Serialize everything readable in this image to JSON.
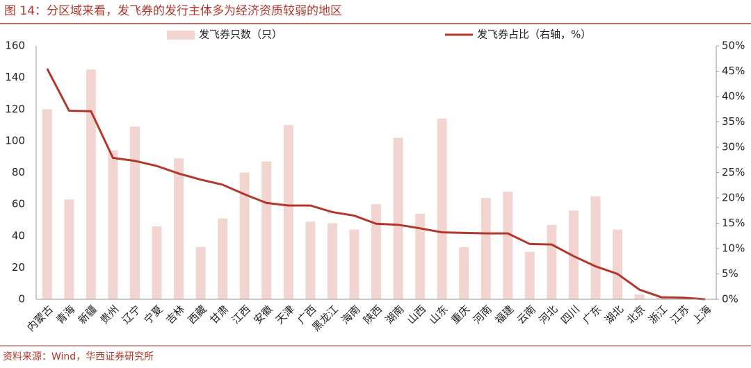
{
  "chart_data": {
    "type": "combo",
    "title": "图 14：分区域来看，发飞券的发行主体多为经济资质较弱的地区",
    "source": "资料来源：Wind，华西证券研究所",
    "categories": [
      "内蒙古",
      "青海",
      "新疆",
      "贵州",
      "辽宁",
      "宁夏",
      "吉林",
      "西藏",
      "甘肃",
      "江西",
      "安徽",
      "天津",
      "广西",
      "黑龙江",
      "海南",
      "陕西",
      "湖南",
      "山西",
      "山东",
      "重庆",
      "河南",
      "福建",
      "云南",
      "河北",
      "四川",
      "广东",
      "湖北",
      "北京",
      "浙江",
      "江苏",
      "上海"
    ],
    "series": [
      {
        "name": "发飞券只数（只）",
        "type": "bar",
        "color": "#f2d5d0",
        "values": [
          120,
          63,
          145,
          94,
          109,
          46,
          89,
          33,
          51,
          80,
          87,
          110,
          49,
          48,
          44,
          60,
          102,
          54,
          114,
          33,
          64,
          68,
          30,
          47,
          56,
          65,
          44,
          3,
          1,
          1,
          0
        ]
      },
      {
        "name": "发飞券占比（右轴，%）",
        "type": "line",
        "axis": "y2",
        "color": "#b3362b",
        "values": [
          45.5,
          37.2,
          37.1,
          27.9,
          27.3,
          26.3,
          24.8,
          23.6,
          22.6,
          20.7,
          19.0,
          18.5,
          18.5,
          17.2,
          16.5,
          14.9,
          14.7,
          14.0,
          13.2,
          13.1,
          13.0,
          13.0,
          10.9,
          10.8,
          8.5,
          6.5,
          5.0,
          1.9,
          0.4,
          0.3,
          0.0
        ]
      }
    ],
    "ylim": [
      0,
      160
    ],
    "yticks": [
      0,
      20,
      40,
      60,
      80,
      100,
      120,
      140,
      160
    ],
    "y2lim": [
      0,
      50
    ],
    "y2ticks": [
      {
        "value": 0,
        "label": "0%"
      },
      {
        "value": 5,
        "label": "5%"
      },
      {
        "value": 10,
        "label": "10%"
      },
      {
        "value": 15,
        "label": "15%"
      },
      {
        "value": 20,
        "label": "20%"
      },
      {
        "value": 25,
        "label": "25%"
      },
      {
        "value": 30,
        "label": "30%"
      },
      {
        "value": 35,
        "label": "35%"
      },
      {
        "value": 40,
        "label": "40%"
      },
      {
        "value": 45,
        "label": "45%"
      },
      {
        "value": 50,
        "label": "50%"
      }
    ]
  }
}
